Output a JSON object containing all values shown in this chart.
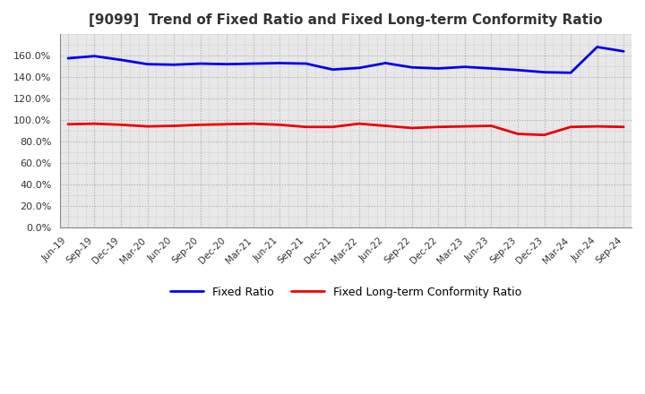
{
  "title": "[9099]  Trend of Fixed Ratio and Fixed Long-term Conformity Ratio",
  "x_labels": [
    "Jun-19",
    "Sep-19",
    "Dec-19",
    "Mar-20",
    "Jun-20",
    "Sep-20",
    "Dec-20",
    "Mar-21",
    "Jun-21",
    "Sep-21",
    "Dec-21",
    "Mar-22",
    "Jun-22",
    "Sep-22",
    "Dec-22",
    "Mar-23",
    "Jun-23",
    "Sep-23",
    "Dec-23",
    "Mar-24",
    "Jun-24",
    "Sep-24"
  ],
  "fixed_ratio": [
    157.5,
    159.5,
    156.0,
    152.0,
    151.5,
    152.5,
    152.0,
    152.5,
    153.0,
    152.5,
    147.0,
    148.5,
    153.0,
    149.0,
    148.0,
    149.5,
    148.0,
    146.5,
    144.5,
    144.0,
    168.0,
    164.0
  ],
  "fixed_lt_ratio": [
    96.0,
    96.5,
    95.5,
    94.0,
    94.5,
    95.5,
    96.0,
    96.5,
    95.5,
    93.5,
    93.5,
    96.5,
    94.5,
    92.5,
    93.5,
    94.0,
    94.5,
    87.0,
    86.0,
    93.5,
    94.0,
    93.5
  ],
  "fixed_ratio_color": "#0000EE",
  "fixed_lt_ratio_color": "#EE0000",
  "ylim": [
    0,
    180
  ],
  "yticks": [
    0,
    20,
    40,
    60,
    80,
    100,
    120,
    140,
    160
  ],
  "plot_bg_color": "#E8E8E8",
  "fig_bg_color": "#FFFFFF",
  "grid_color": "#AAAAAA",
  "legend_fixed": "Fixed Ratio",
  "legend_lt": "Fixed Long-term Conformity Ratio",
  "title_color": "#333333"
}
